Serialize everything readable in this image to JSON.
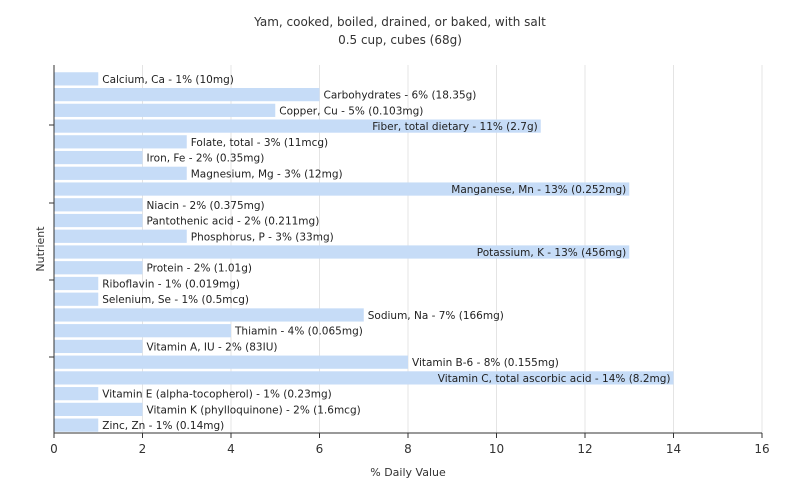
{
  "chart_data": {
    "type": "bar",
    "orientation": "horizontal",
    "title": "Yam, cooked, boiled, drained, or baked, with salt",
    "subtitle": "0.5 cup, cubes (68g)",
    "xlabel": "% Daily Value",
    "ylabel": "Nutrient",
    "xlim": [
      0,
      16
    ],
    "xticks": [
      0,
      2,
      4,
      6,
      8,
      10,
      12,
      14,
      16
    ],
    "grid": true,
    "bar_color": "#c6dcf7",
    "categories": [
      "Calcium, Ca",
      "Carbohydrates",
      "Copper, Cu",
      "Fiber, total dietary",
      "Folate, total",
      "Iron, Fe",
      "Magnesium, Mg",
      "Manganese, Mn",
      "Niacin",
      "Pantothenic acid",
      "Phosphorus, P",
      "Potassium, K",
      "Protein",
      "Riboflavin",
      "Selenium, Se",
      "Sodium, Na",
      "Thiamin",
      "Vitamin A, IU",
      "Vitamin B-6",
      "Vitamin C, total ascorbic acid",
      "Vitamin E (alpha-tocopherol)",
      "Vitamin K (phylloquinone)",
      "Zinc, Zn"
    ],
    "values": [
      1,
      6,
      5,
      11,
      3,
      2,
      3,
      13,
      2,
      2,
      3,
      13,
      2,
      1,
      1,
      7,
      4,
      2,
      8,
      14,
      1,
      2,
      1
    ],
    "labels": [
      "Calcium, Ca - 1% (10mg)",
      "Carbohydrates - 6% (18.35g)",
      "Copper, Cu - 5% (0.103mg)",
      "Fiber, total dietary - 11% (2.7g)",
      "Folate, total - 3% (11mcg)",
      "Iron, Fe - 2% (0.35mg)",
      "Magnesium, Mg - 3% (12mg)",
      "Manganese, Mn - 13% (0.252mg)",
      "Niacin - 2% (0.375mg)",
      "Pantothenic acid - 2% (0.211mg)",
      "Phosphorus, P - 3% (33mg)",
      "Potassium, K - 13% (456mg)",
      "Protein - 2% (1.01g)",
      "Riboflavin - 1% (0.019mg)",
      "Selenium, Se - 1% (0.5mcg)",
      "Sodium, Na - 7% (166mg)",
      "Thiamin - 4% (0.065mg)",
      "Vitamin A, IU - 2% (83IU)",
      "Vitamin B-6 - 8% (0.155mg)",
      "Vitamin C, total ascorbic acid - 14% (8.2mg)",
      "Vitamin E (alpha-tocopherol) - 1% (0.23mg)",
      "Vitamin K (phylloquinone) - 2% (1.6mcg)",
      "Zinc, Zn - 1% (0.14mg)"
    ]
  }
}
